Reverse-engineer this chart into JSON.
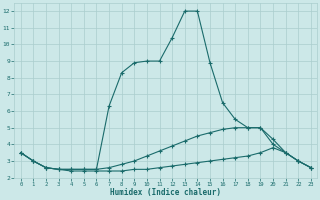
{
  "xlabel": "Humidex (Indice chaleur)",
  "bg_color": "#cce8e8",
  "grid_color": "#aacece",
  "line_color": "#1a6b6b",
  "xlim": [
    -0.5,
    23.5
  ],
  "ylim": [
    2,
    12.5
  ],
  "yticks": [
    2,
    3,
    4,
    5,
    6,
    7,
    8,
    9,
    10,
    11,
    12
  ],
  "xticks": [
    0,
    1,
    2,
    3,
    4,
    5,
    6,
    7,
    8,
    9,
    10,
    11,
    12,
    13,
    14,
    15,
    16,
    17,
    18,
    19,
    20,
    21,
    22,
    23
  ],
  "line1_x": [
    0,
    1,
    2,
    3,
    4,
    5,
    6,
    7,
    8,
    9,
    10,
    11,
    12,
    13,
    14,
    15,
    16,
    17,
    18,
    19,
    20,
    21,
    22,
    23
  ],
  "line1_y": [
    3.5,
    3.0,
    2.6,
    2.5,
    2.4,
    2.4,
    2.4,
    2.4,
    2.4,
    2.5,
    2.5,
    2.6,
    2.7,
    2.8,
    2.9,
    3.0,
    3.1,
    3.2,
    3.3,
    3.5,
    3.8,
    3.5,
    3.0,
    2.6
  ],
  "line2_x": [
    0,
    1,
    2,
    3,
    4,
    5,
    6,
    7,
    8,
    9,
    10,
    11,
    12,
    13,
    14,
    15,
    16,
    17,
    18,
    19,
    20,
    21,
    22,
    23
  ],
  "line2_y": [
    3.5,
    3.0,
    2.6,
    2.5,
    2.5,
    2.5,
    2.5,
    2.6,
    2.8,
    3.0,
    3.3,
    3.6,
    3.9,
    4.2,
    4.5,
    4.7,
    4.9,
    5.0,
    5.0,
    5.0,
    4.3,
    3.5,
    3.0,
    2.6
  ],
  "line3_x": [
    0,
    1,
    2,
    3,
    4,
    5,
    6,
    7,
    8,
    9,
    10,
    11,
    12,
    13,
    14,
    15,
    16,
    17,
    18,
    19,
    20,
    21,
    22,
    23
  ],
  "line3_y": [
    3.5,
    3.0,
    2.6,
    2.5,
    2.5,
    2.5,
    2.5,
    6.3,
    8.3,
    8.9,
    9.0,
    9.0,
    10.4,
    12.0,
    12.0,
    8.9,
    6.5,
    5.5,
    5.0,
    5.0,
    4.0,
    3.5,
    3.0,
    2.6
  ],
  "marker": "+",
  "markersize": 3,
  "linewidth": 0.8
}
